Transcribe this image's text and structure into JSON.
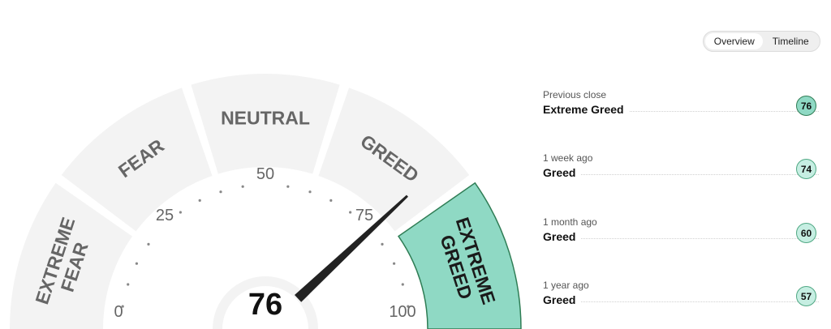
{
  "gauge": {
    "min_label": "0",
    "mid_low_label": "25",
    "mid_label": "50",
    "mid_high_label": "75",
    "max_label": "100",
    "value": 76,
    "value_text": "76",
    "zones": [
      {
        "line1": "EXTREME",
        "line2": "FEAR",
        "active": false
      },
      {
        "line1": "FEAR",
        "line2": "",
        "active": false
      },
      {
        "line1": "NEUTRAL",
        "line2": "",
        "active": false
      },
      {
        "line1": "GREED",
        "line2": "",
        "active": false
      },
      {
        "line1": "EXTREME",
        "line2": "GREED",
        "active": true
      }
    ],
    "colors": {
      "inactive": "#f3f3f3",
      "active": "#8fd9c4",
      "active_stroke": "#2f7d55",
      "text": "#666666",
      "active_text": "#1a1a1a",
      "needle": "#222222"
    }
  },
  "view_toggle": {
    "overview": "Overview",
    "timeline": "Timeline",
    "selected": "Overview"
  },
  "history": [
    {
      "label": "Previous close",
      "sentiment": "Extreme Greed",
      "score": "76"
    },
    {
      "label": "1 week ago",
      "sentiment": "Greed",
      "score": "74"
    },
    {
      "label": "1 month ago",
      "sentiment": "Greed",
      "score": "60"
    },
    {
      "label": "1 year ago",
      "sentiment": "Greed",
      "score": "57"
    }
  ]
}
